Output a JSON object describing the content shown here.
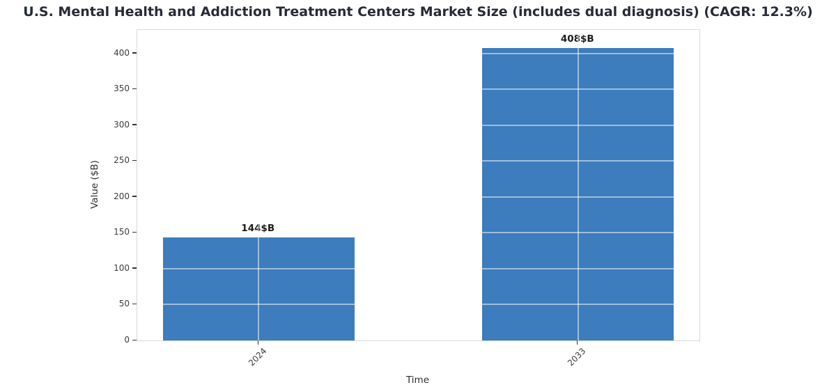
{
  "chart_data": {
    "type": "bar",
    "title": "U.S. Mental Health and Addiction Treatment Centers Market Size (includes dual diagnosis) (CAGR: 12.3%)",
    "categories": [
      "2024",
      "2033"
    ],
    "values": [
      144,
      408
    ],
    "bar_labels": [
      "144$B",
      "408$B"
    ],
    "xlabel": "Time",
    "ylabel": "Value ($B)",
    "ylim": [
      0,
      433
    ],
    "ytick_step": 50,
    "ytick_labels": [
      "0",
      "50",
      "100",
      "150",
      "200",
      "250",
      "300",
      "350",
      "400"
    ],
    "grid": true,
    "legend_position": "none",
    "colors": {
      "bar": "#3d7cbd",
      "title_text": "#262b36",
      "tick_text": "#3b3b3b",
      "axis_label_text": "#2e2e2e",
      "value_label_text": "#1c1c1c",
      "plot_border": "#d9d9d9",
      "grid_over_bar": "rgba(255,255,255,0.5)",
      "tick_mark": "#333333"
    }
  }
}
